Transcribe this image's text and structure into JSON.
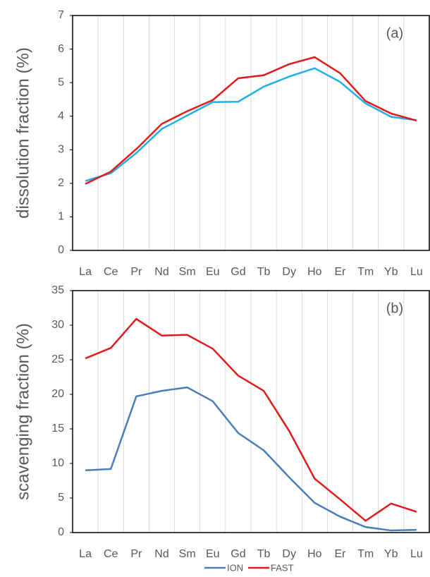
{
  "chart_data": [
    {
      "type": "line",
      "y_label": "dissolution fraction (%)",
      "annotation": "(a)",
      "categories": [
        "La",
        "Ce",
        "Pr",
        "Nd",
        "Sm",
        "Eu",
        "Gd",
        "Tb",
        "Dy",
        "Ho",
        "Er",
        "Tm",
        "Yb",
        "Lu"
      ],
      "ylim": [
        0,
        7
      ],
      "yticks": [
        0,
        1,
        2,
        3,
        4,
        5,
        6,
        7
      ],
      "grid": true,
      "series": [
        {
          "color": "#1fb0e6",
          "values": [
            2.07,
            2.3,
            2.9,
            3.62,
            4.02,
            4.42,
            4.43,
            4.88,
            5.18,
            5.43,
            5.02,
            4.38,
            3.98,
            3.88
          ]
        },
        {
          "color": "#e31a1c",
          "values": [
            1.98,
            2.35,
            3.02,
            3.77,
            4.15,
            4.48,
            5.13,
            5.22,
            5.55,
            5.76,
            5.28,
            4.45,
            4.08,
            3.87
          ]
        }
      ]
    },
    {
      "type": "line",
      "y_label": "scavenging  fraction (%)",
      "annotation": "(b)",
      "categories": [
        "La",
        "Ce",
        "Pr",
        "Nd",
        "Sm",
        "Eu",
        "Gd",
        "Tb",
        "Dy",
        "Ho",
        "Er",
        "Tm",
        "Yb",
        "Lu"
      ],
      "ylim": [
        0,
        35
      ],
      "yticks": [
        0,
        5,
        10,
        15,
        20,
        25,
        30,
        35
      ],
      "grid": true,
      "legend": "bottom",
      "series": [
        {
          "name": "ION",
          "color": "#4a7ebb",
          "values": [
            9.0,
            9.2,
            19.7,
            20.5,
            21.0,
            19.0,
            14.4,
            11.9,
            8.0,
            4.3,
            2.3,
            0.8,
            0.3,
            0.4
          ]
        },
        {
          "name": "FAST",
          "color": "#e31a1c",
          "values": [
            25.2,
            26.7,
            30.9,
            28.5,
            28.6,
            26.6,
            22.7,
            20.5,
            14.7,
            7.8,
            4.8,
            1.7,
            4.2,
            3.0
          ]
        }
      ]
    }
  ]
}
